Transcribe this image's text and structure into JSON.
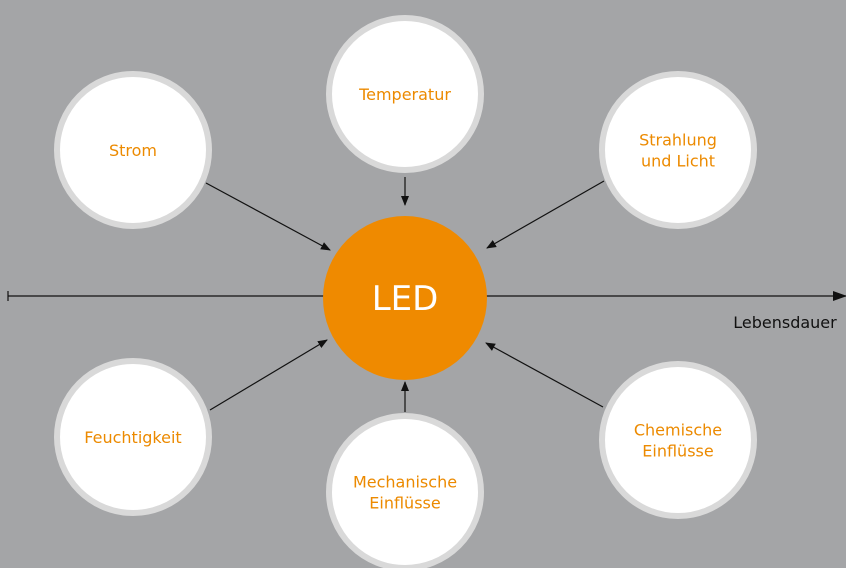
{
  "center": {
    "label": "LED"
  },
  "axis": {
    "label": "Lebensdauer"
  },
  "nodes": [
    {
      "lines": [
        "Strom"
      ]
    },
    {
      "lines": [
        "Temperatur"
      ]
    },
    {
      "lines": [
        "Strahlung",
        "und Licht"
      ]
    },
    {
      "lines": [
        "Feuchtigkeit"
      ]
    },
    {
      "lines": [
        "Mechanische",
        "Einflüsse"
      ]
    },
    {
      "lines": [
        "Chemische",
        "Einflüsse"
      ]
    }
  ]
}
